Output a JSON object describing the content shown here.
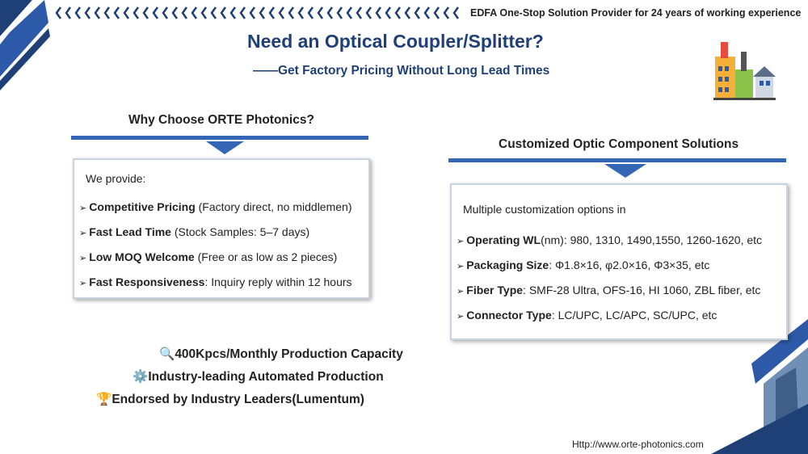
{
  "header": {
    "tagline": "EDFA One-Stop Solution Provider for 24 years of working experience",
    "title": "Need an Optical Coupler/Splitter?",
    "subtitle": "——Get Factory Pricing Without Long Lead Times"
  },
  "left": {
    "heading": "Why Choose ORTE Photonics?",
    "intro": "We provide:",
    "items": [
      {
        "bold": "Competitive Pricing",
        "rest": " (Factory direct, no middlemen)"
      },
      {
        "bold": "Fast Lead Time",
        "rest": " (Stock Samples: 5–7 days)"
      },
      {
        "bold": "Low MOQ Welcome",
        "rest": " (Free or as low as 2 pieces)"
      },
      {
        "bold": "Fast Responsiveness",
        "rest": ": Inquiry reply within 12 hours"
      }
    ]
  },
  "right": {
    "heading": "Customized Optic Component Solutions",
    "intro": "Multiple customization options in",
    "items": [
      {
        "bold": "Operating WL",
        "rest": "(nm): 980, 1310, 1490,1550, 1260-1620, etc"
      },
      {
        "bold": "Packaging Size",
        "rest": ": Φ1.8×16, φ2.0×16, Φ3×35, etc"
      },
      {
        "bold": "Fiber Type",
        "rest": ": SMF-28 Ultra, OFS-16, HI 1060, ZBL fiber, etc"
      },
      {
        "bold": "Connector Type",
        "rest": ": LC/UPC, LC/APC, SC/UPC, etc"
      }
    ]
  },
  "highlights": [
    {
      "icon": "🔍",
      "text": "400Kpcs/Monthly Production Capacity"
    },
    {
      "icon": "⚙️",
      "text": "Industry-leading Automated Production"
    },
    {
      "icon": "🏆",
      "text": "Endorsed by Industry Leaders(Lumentum)"
    }
  ],
  "footer": {
    "url": "Http://www.orte-photonics.com"
  }
}
